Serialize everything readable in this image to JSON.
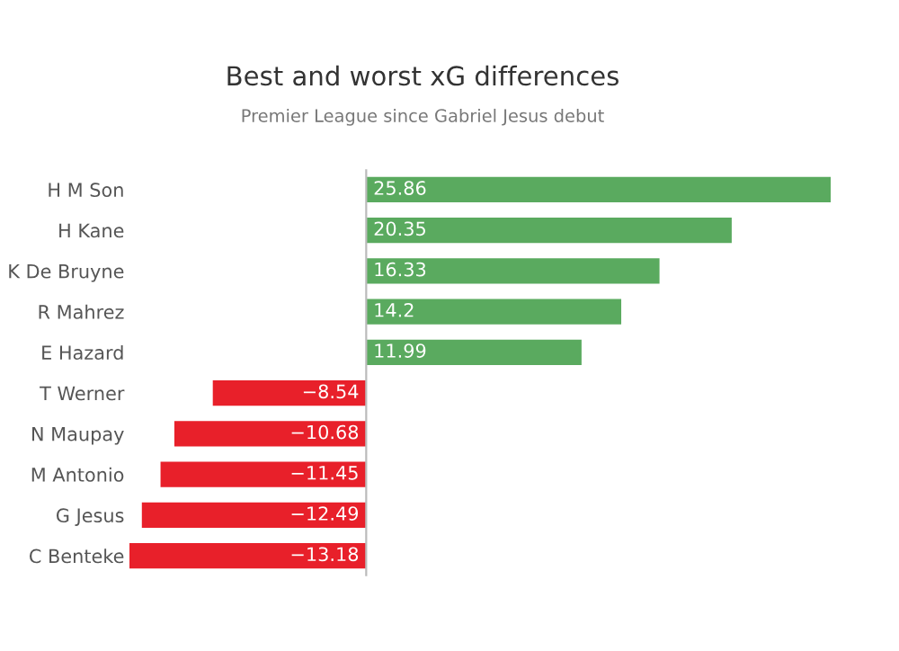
{
  "chart_data": {
    "type": "bar",
    "orientation": "horizontal",
    "title": "Best and worst xG differences",
    "subtitle": "Premier League since Gabriel Jesus debut",
    "categories": [
      "H M Son",
      "H Kane",
      "K De Bruyne",
      "R Mahrez",
      "E Hazard",
      "T Werner",
      "N Maupay",
      "M Antonio",
      "G Jesus",
      "C Benteke"
    ],
    "values": [
      25.86,
      20.35,
      16.33,
      14.2,
      11.99,
      -8.54,
      -10.68,
      -11.45,
      -12.49,
      -13.18
    ],
    "value_labels": [
      "25.86",
      "20.35",
      "16.33",
      "14.2",
      "11.99",
      "−8.54",
      "−10.68",
      "−11.45",
      "−12.49",
      "−13.18"
    ],
    "colors": [
      "#5aaa5f",
      "#5aaa5f",
      "#5aaa5f",
      "#5aaa5f",
      "#5aaa5f",
      "#e8202a",
      "#e8202a",
      "#e8202a",
      "#e8202a",
      "#e8202a"
    ],
    "grid": false,
    "legend": false
  }
}
